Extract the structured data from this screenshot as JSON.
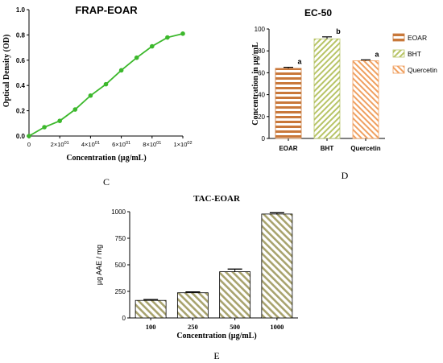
{
  "panels": {
    "C": "C",
    "D": "D",
    "E": "E"
  },
  "colors": {
    "line": "#3cb82c",
    "eoar_bar": "#c9783a",
    "bht_bar": "#b7c466",
    "quercetin_bar": "#f0a060",
    "tac_bar": "#a8a36e",
    "axis": "#000000"
  },
  "chart_data": [
    {
      "id": "frap",
      "type": "line",
      "title": "FRAP-EOAR",
      "xlabel": "Concentration (µg/mL)",
      "ylabel": "Optical Density (OD)",
      "xlim": [
        0,
        100
      ],
      "ylim": [
        0,
        1.0
      ],
      "xticks": [
        {
          "value": 0,
          "label": "0"
        },
        {
          "value": 20,
          "label": "2×10",
          "exp": "01"
        },
        {
          "value": 40,
          "label": "4×10",
          "exp": "01"
        },
        {
          "value": 60,
          "label": "6×10",
          "exp": "01"
        },
        {
          "value": 80,
          "label": "8×10",
          "exp": "01"
        },
        {
          "value": 100,
          "label": "1×10",
          "exp": "02"
        }
      ],
      "yticks": [
        {
          "value": 0,
          "label": "0.0"
        },
        {
          "value": 0.2,
          "label": "0.2"
        },
        {
          "value": 0.4,
          "label": "0.4"
        },
        {
          "value": 0.6,
          "label": "0.6"
        },
        {
          "value": 0.8,
          "label": "0.8"
        },
        {
          "value": 1.0,
          "label": "1.0"
        }
      ],
      "x": [
        0,
        10,
        20,
        30,
        40,
        50,
        60,
        70,
        80,
        90,
        100
      ],
      "y": [
        0.0,
        0.07,
        0.12,
        0.21,
        0.32,
        0.41,
        0.52,
        0.62,
        0.71,
        0.78,
        0.81
      ],
      "err": [
        0.005,
        0.006,
        0.006,
        0.008,
        0.008,
        0.008,
        0.015,
        0.008,
        0.008,
        0.008,
        0.006
      ]
    },
    {
      "id": "ec50",
      "type": "bar",
      "title": "EC-50",
      "xlabel": "",
      "ylabel": "Concentration in µg/mL",
      "ylim": [
        0,
        100
      ],
      "yticks": [
        {
          "value": 0,
          "label": "0"
        },
        {
          "value": 20,
          "label": "20"
        },
        {
          "value": 40,
          "label": "40"
        },
        {
          "value": 60,
          "label": "60"
        },
        {
          "value": 80,
          "label": "80"
        },
        {
          "value": 100,
          "label": "100"
        }
      ],
      "categories": [
        "EOAR",
        "BHT",
        "Quercetin"
      ],
      "values": [
        64,
        91,
        71
      ],
      "err": [
        1.0,
        1.8,
        0.8
      ],
      "sig_labels": [
        "a",
        "b",
        "a"
      ],
      "legend": [
        "EOAR",
        "BHT",
        "Quercetin"
      ],
      "legend_position": "right"
    },
    {
      "id": "tac",
      "type": "bar",
      "title": "TAC-EOAR",
      "xlabel": "Concentration (µg/mL)",
      "ylabel": "µg AAE / mg",
      "ylim": [
        0,
        1000
      ],
      "yticks": [
        {
          "value": 0,
          "label": "0"
        },
        {
          "value": 250,
          "label": "250"
        },
        {
          "value": 500,
          "label": "500"
        },
        {
          "value": 750,
          "label": "750"
        },
        {
          "value": 1000,
          "label": "1000"
        }
      ],
      "categories": [
        "100",
        "250",
        "500",
        "1000"
      ],
      "values": [
        165,
        237,
        435,
        978
      ],
      "err": [
        8,
        8,
        25,
        12
      ]
    }
  ]
}
